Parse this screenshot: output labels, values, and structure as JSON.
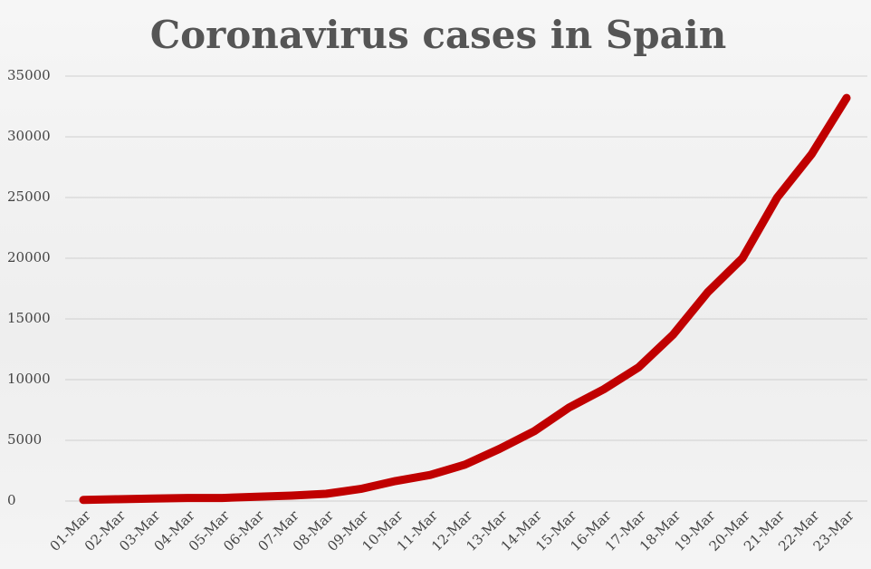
{
  "chart_data": {
    "type": "line",
    "title": "Coronavirus cases in Spain",
    "categories": [
      "01-Mar",
      "02-Mar",
      "03-Mar",
      "04-Mar",
      "05-Mar",
      "06-Mar",
      "07-Mar",
      "08-Mar",
      "09-Mar",
      "10-Mar",
      "11-Mar",
      "12-Mar",
      "13-Mar",
      "14-Mar",
      "15-Mar",
      "16-Mar",
      "17-Mar",
      "18-Mar",
      "19-Mar",
      "20-Mar",
      "21-Mar",
      "22-Mar",
      "23-Mar"
    ],
    "values": [
      100,
      150,
      200,
      250,
      250,
      350,
      450,
      600,
      1000,
      1650,
      2150,
      3000,
      4300,
      5750,
      7700,
      9200,
      11000,
      13700,
      17200,
      20000,
      25000,
      28600,
      33200
    ],
    "color": "#c00000",
    "ylim": [
      0,
      35000
    ],
    "yticks": [
      0,
      5000,
      10000,
      15000,
      20000,
      25000,
      30000,
      35000
    ],
    "grid": true
  }
}
